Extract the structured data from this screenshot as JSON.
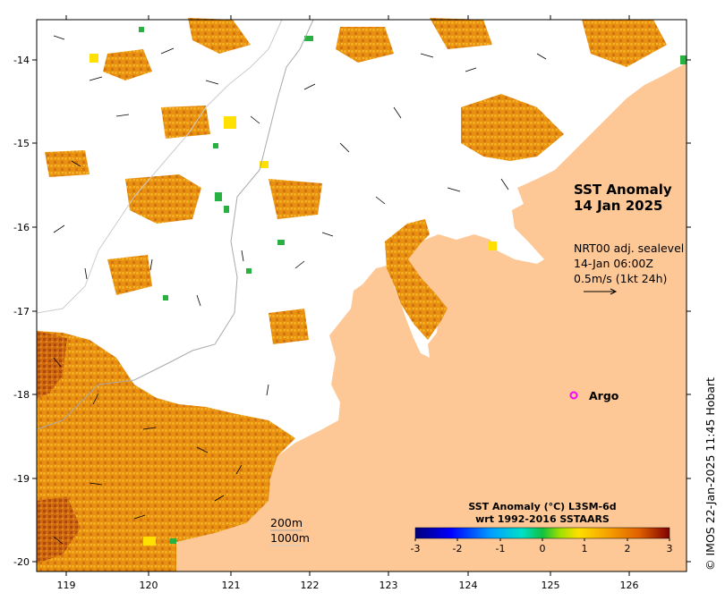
{
  "map": {
    "title_line1": "SST Anomaly",
    "title_line2": "14 Jan 2025",
    "current_note": {
      "line1": "NRT00 adj. sealevel",
      "line2": "14-Jan 06:00Z",
      "line3": "0.5m/s (1kt 24h)"
    },
    "argo_label": "Argo",
    "depth_contours": [
      "200m",
      "1000m"
    ],
    "colorbar": {
      "title_line1": "SST Anomaly (°C) L3SM-6d",
      "title_line2": "wrt 1992-2016 SSTAARS",
      "ticks": [
        "-3",
        "-2",
        "-1",
        "0",
        "1",
        "2",
        "3"
      ]
    },
    "credit": "© IMOS 22-Jan-2025 11:45 Hobart",
    "lat_ticks": [
      "-14",
      "-15",
      "-16",
      "-17",
      "-18",
      "-19",
      "-20"
    ],
    "lon_ticks": [
      "119",
      "120",
      "121",
      "122",
      "123",
      "124",
      "125",
      "126"
    ],
    "colors": {
      "land": "#fdc896",
      "no_data": "#ffffff",
      "argo": "#ff00ff",
      "anomaly_low": "#f0a020",
      "anomaly_mid": "#e08a10",
      "anomaly_high": "#c86a0a",
      "anomaly_very_high": "#9a3a05"
    }
  }
}
